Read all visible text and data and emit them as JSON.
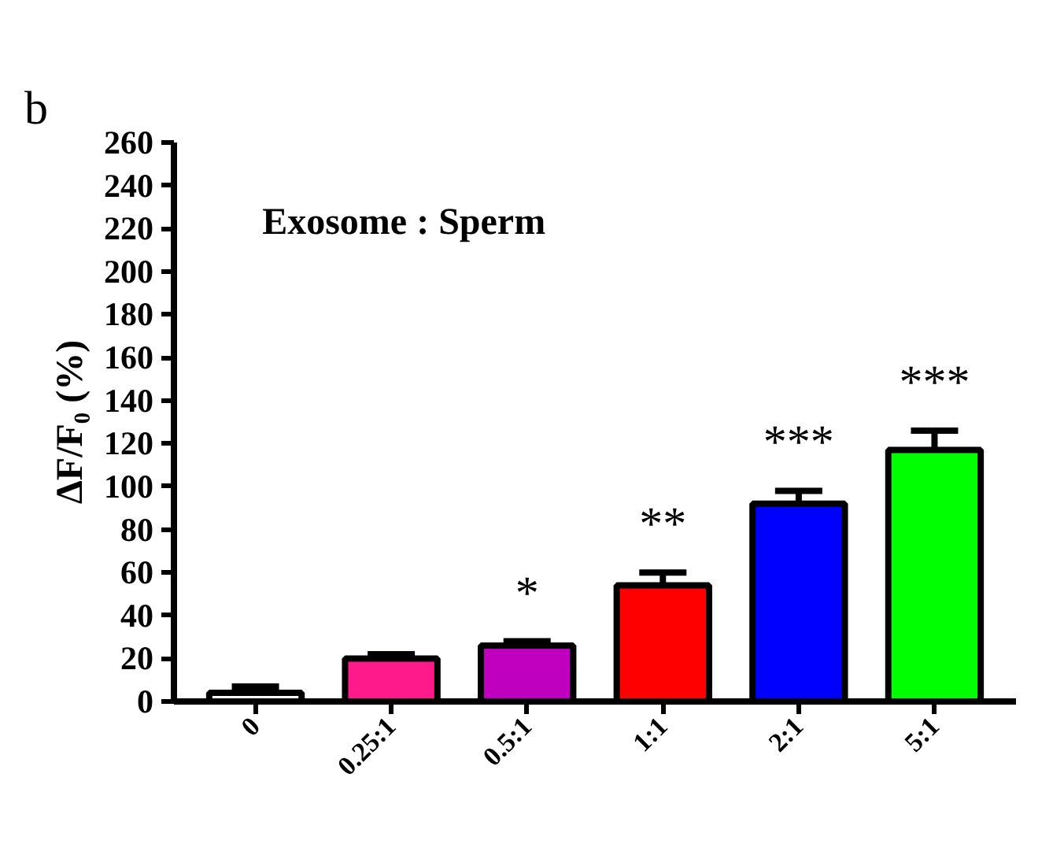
{
  "chart_data": {
    "type": "bar",
    "title": "b",
    "ylabel": "ΔF/F₀ (%)",
    "categories": [
      "0",
      "0.25:1",
      "0.5:1",
      "1:1",
      "2:1",
      "5:1"
    ],
    "values": [
      4,
      20,
      26,
      54,
      92,
      117
    ],
    "errors": [
      3,
      2,
      2,
      6,
      6,
      9
    ],
    "colors": [
      "#ffffff",
      "#ff1a8c",
      "#bf00bf",
      "#ff0000",
      "#0000ff",
      "#00ff00"
    ],
    "ylim": [
      0,
      260
    ],
    "yticks": [
      0,
      20,
      40,
      60,
      80,
      100,
      120,
      140,
      160,
      180,
      200,
      220,
      240,
      260
    ],
    "grid": false,
    "annotations": [
      "Exosome : Sperm",
      "*",
      "**",
      "***",
      "***"
    ]
  }
}
